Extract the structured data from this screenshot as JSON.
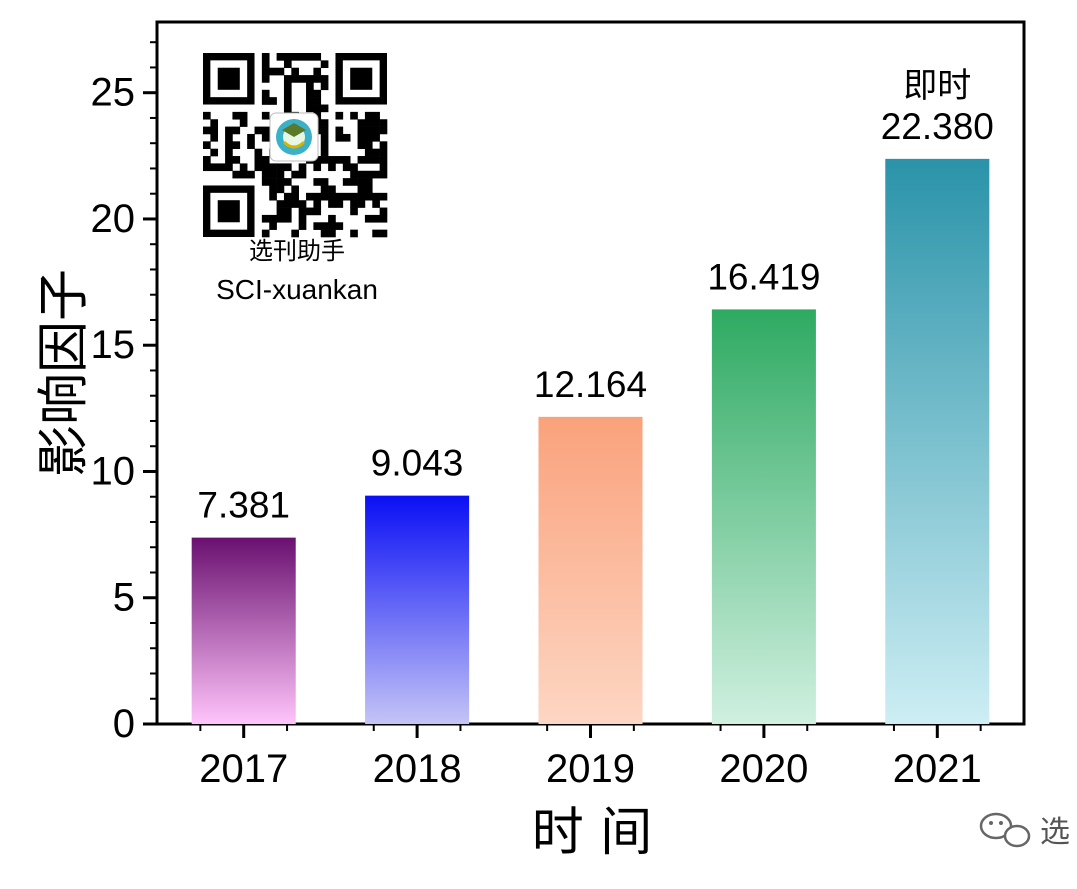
{
  "chart_data": {
    "type": "bar",
    "categories": [
      "2017",
      "2018",
      "2019",
      "2020",
      "2021"
    ],
    "values": [
      7.381,
      9.043,
      12.164,
      16.419,
      22.38
    ],
    "value_labels": [
      "7.381",
      "9.043",
      "12.164",
      "16.419",
      "22.380"
    ],
    "annotations": [
      {
        "category": "2021",
        "text": "即时"
      }
    ],
    "xlabel": "时 间",
    "ylabel": "影响因子",
    "ylim": [
      0,
      27.8
    ],
    "yticks": [
      0,
      5,
      10,
      15,
      20,
      25
    ],
    "grid": false,
    "bar_gradients": [
      {
        "top": "#6a1070",
        "bottom": "#ffc4fb"
      },
      {
        "top": "#0a0ff5",
        "bottom": "#c4c4f6"
      },
      {
        "top": "#faa27c",
        "bottom": "#fdd6c3"
      },
      {
        "top": "#2eaa62",
        "bottom": "#d0f0e0"
      },
      {
        "top": "#2a93a9",
        "bottom": "#cdeef4"
      }
    ]
  },
  "qr_block": {
    "label_cn": "选刊助手",
    "label_en": "SCI-xuankan"
  },
  "watermark": {
    "icon": "wechat-icon",
    "text": "选"
  }
}
